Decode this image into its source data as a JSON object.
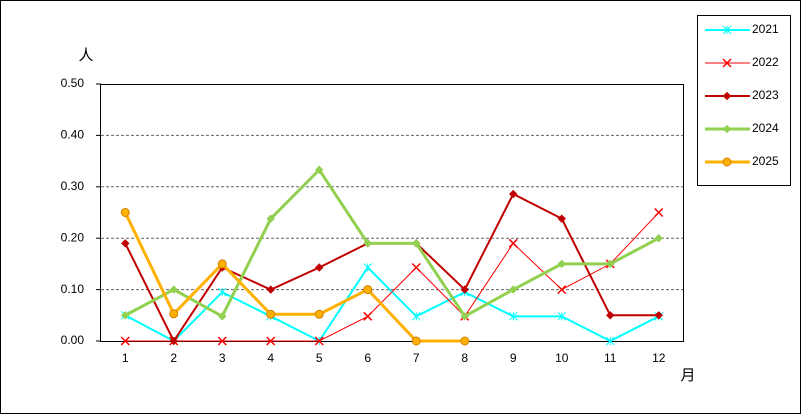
{
  "chart_data": {
    "type": "line",
    "y_label": "人",
    "x_label": "月",
    "categories": [
      "1",
      "2",
      "3",
      "4",
      "5",
      "6",
      "7",
      "8",
      "9",
      "10",
      "11",
      "12"
    ],
    "series": [
      {
        "name": "2021",
        "color": "#00ffff",
        "values": [
          0.05,
          0.0,
          0.095,
          0.048,
          0.0,
          0.143,
          0.048,
          0.095,
          0.048,
          0.048,
          0.0,
          0.048
        ]
      },
      {
        "name": "2022",
        "color": "#ff0000",
        "values": [
          0.0,
          0.0,
          0.0,
          0.0,
          0.0,
          0.048,
          0.143,
          0.048,
          0.19,
          0.1,
          0.15,
          0.25
        ]
      },
      {
        "name": "2023",
        "color": "#c00000",
        "values": [
          0.19,
          0.0,
          0.143,
          0.1,
          0.143,
          0.19,
          0.19,
          0.1,
          0.286,
          0.238,
          0.05,
          0.05
        ]
      },
      {
        "name": "2024",
        "color": "#92d050",
        "values": [
          0.05,
          0.1,
          0.048,
          0.238,
          0.333,
          0.19,
          0.19,
          0.048,
          0.1,
          0.15,
          0.15,
          0.2
        ]
      },
      {
        "name": "2025",
        "color": "#ffb000",
        "values": [
          0.25,
          0.053,
          0.15,
          0.052,
          0.052,
          0.1,
          0.0,
          0.0,
          null,
          null,
          null,
          null
        ]
      }
    ],
    "ylim": [
      0,
      0.5
    ],
    "yticks": [
      {
        "value": 0,
        "label": "0.00"
      },
      {
        "value": 0.1,
        "label": "0.10"
      },
      {
        "value": 0.2,
        "label": "0.20"
      },
      {
        "value": 0.3,
        "label": "0.30"
      },
      {
        "value": 0.4,
        "label": "0.40"
      },
      {
        "value": 0.5,
        "label": "0.50"
      }
    ],
    "grid": true,
    "legend": "right"
  }
}
